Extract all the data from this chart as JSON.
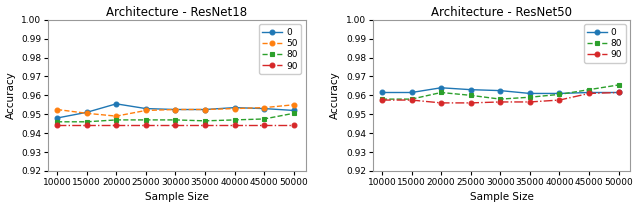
{
  "x": [
    10000,
    15000,
    20000,
    25000,
    30000,
    35000,
    40000,
    45000,
    50000
  ],
  "resnet18": {
    "title": "Architecture - ResNet18",
    "series": {
      "0": [
        0.948,
        0.951,
        0.9555,
        0.953,
        0.9525,
        0.9525,
        0.9535,
        0.953,
        0.952
      ],
      "50": [
        0.9525,
        0.9505,
        0.949,
        0.952,
        0.9525,
        0.9525,
        0.953,
        0.9535,
        0.955
      ],
      "80": [
        0.946,
        0.946,
        0.947,
        0.947,
        0.947,
        0.9465,
        0.947,
        0.9475,
        0.9505
      ],
      "90": [
        0.9445,
        0.9445,
        0.9445,
        0.9445,
        0.9445,
        0.9445,
        0.9445,
        0.9445,
        0.9445
      ]
    }
  },
  "resnet50": {
    "title": "Architecture - ResNet50",
    "series": {
      "0": [
        0.9615,
        0.9615,
        0.964,
        0.963,
        0.9625,
        0.961,
        0.961,
        0.9615,
        0.9615
      ],
      "80": [
        0.958,
        0.958,
        0.9615,
        0.96,
        0.958,
        0.959,
        0.9605,
        0.963,
        0.9655
      ],
      "90": [
        0.9575,
        0.9575,
        0.956,
        0.956,
        0.9565,
        0.9565,
        0.9575,
        0.961,
        0.9615
      ]
    }
  },
  "colors": {
    "0": "#1f77b4",
    "50": "#ff7f0e",
    "80": "#2ca02c",
    "90": "#d62728"
  },
  "ylim": [
    0.92,
    1.0
  ],
  "yticks": [
    0.92,
    0.93,
    0.94,
    0.95,
    0.96,
    0.97,
    0.98,
    0.99,
    1.0
  ],
  "xlabel": "Sample Size",
  "ylabel": "Accuracy",
  "line_styles": {
    "0": "-",
    "50": "--",
    "80": "--",
    "90": "-."
  },
  "markers": {
    "0": "o",
    "50": "o",
    "80": "s",
    "90": "o"
  },
  "figsize": [
    6.4,
    2.08
  ],
  "dpi": 100
}
